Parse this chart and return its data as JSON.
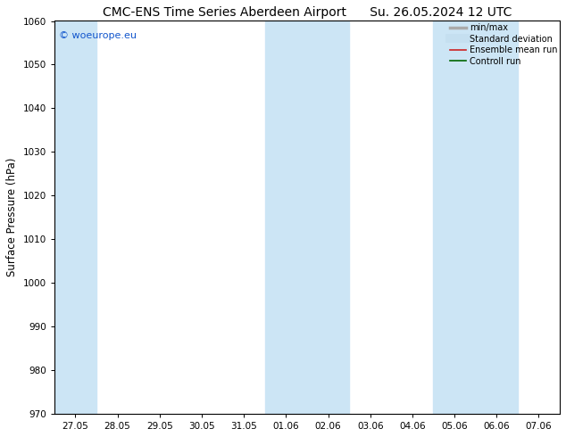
{
  "title_left": "CMC-ENS Time Series Aberdeen Airport",
  "title_right": "Su. 26.05.2024 12 UTC",
  "ylabel": "Surface Pressure (hPa)",
  "ylim": [
    970,
    1060
  ],
  "yticks": [
    970,
    980,
    990,
    1000,
    1010,
    1020,
    1030,
    1040,
    1050,
    1060
  ],
  "xtick_labels": [
    "27.05",
    "28.05",
    "29.05",
    "30.05",
    "31.05",
    "01.06",
    "02.06",
    "03.06",
    "04.06",
    "05.06",
    "06.06",
    "07.06"
  ],
  "shaded_bands_idx": [
    {
      "xstart": 0,
      "xend": 1
    },
    {
      "xstart": 5,
      "xend": 7
    },
    {
      "xstart": 9,
      "xend": 11
    }
  ],
  "shade_color": "#cce5f5",
  "watermark_text": "© woeurope.eu",
  "watermark_color": "#1155cc",
  "legend_items": [
    {
      "label": "min/max",
      "color": "#aaaaaa",
      "lw": 2.5,
      "style": "solid",
      "type": "line"
    },
    {
      "label": "Standard deviation",
      "color": "#c5dff0",
      "lw": 7,
      "style": "solid",
      "type": "line"
    },
    {
      "label": "Ensemble mean run",
      "color": "#cc2222",
      "lw": 1.2,
      "style": "solid",
      "type": "line"
    },
    {
      "label": "Controll run",
      "color": "#006600",
      "lw": 1.2,
      "style": "solid",
      "type": "line"
    }
  ],
  "bg_color": "#ffffff",
  "plot_bg_color": "#ffffff",
  "title_fontsize": 10,
  "tick_fontsize": 7.5,
  "ylabel_fontsize": 8.5,
  "watermark_fontsize": 8,
  "legend_fontsize": 7
}
